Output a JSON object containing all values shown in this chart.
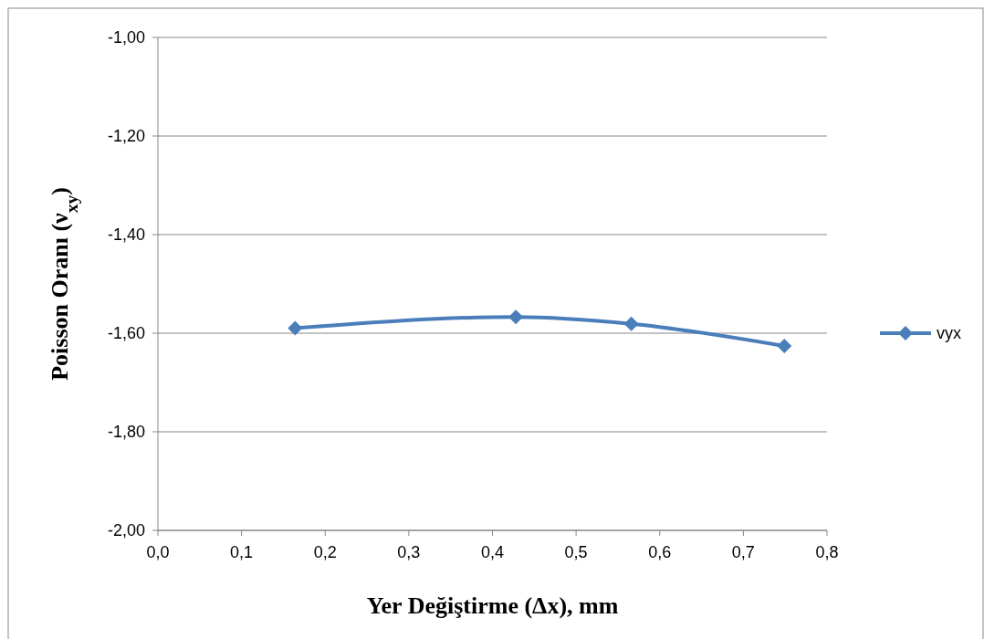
{
  "chart_data": {
    "type": "line",
    "xlabel": "Yer Değiştirme (Δx), mm",
    "ylabel": "Poisson Oranı (ν$_{xy}$)",
    "x": [
      0.164,
      0.428,
      0.566,
      0.749
    ],
    "series": [
      {
        "name": "vyx",
        "color": "#4a7ebb",
        "values": [
          -1.59,
          -1.567,
          -1.581,
          -1.626
        ]
      }
    ],
    "xlim": [
      0,
      0.8
    ],
    "xticks": [
      {
        "value": 0,
        "label": "0,0"
      },
      {
        "value": 0.1,
        "label": "0,1"
      },
      {
        "value": 0.2,
        "label": "0,2"
      },
      {
        "value": 0.3,
        "label": "0,3"
      },
      {
        "value": 0.4,
        "label": "0,4"
      },
      {
        "value": 0.5,
        "label": "0,5"
      },
      {
        "value": 0.6,
        "label": "0,6"
      },
      {
        "value": 0.7,
        "label": "0,7"
      },
      {
        "value": 0.8,
        "label": "0,8"
      }
    ],
    "ylim": [
      -2,
      -1
    ],
    "yticks": [
      {
        "value": -2,
        "label": "-2,00"
      },
      {
        "value": -1.8,
        "label": "-1,80"
      },
      {
        "value": -1.6,
        "label": "-1,60"
      },
      {
        "value": -1.4,
        "label": "-1,40"
      },
      {
        "value": -1.2,
        "label": "-1,20"
      },
      {
        "value": -1,
        "label": "-1,00"
      }
    ],
    "grid": "y",
    "legend": "right",
    "marker": "diamond",
    "line_style": "solid"
  }
}
